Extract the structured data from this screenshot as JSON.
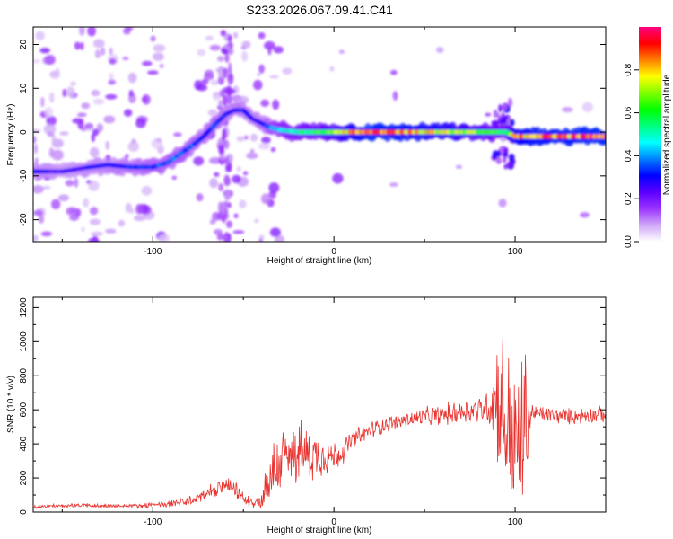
{
  "title": "S233.2026.067.09.41.C41",
  "chart_data": [
    {
      "type": "heatmap",
      "xlabel": "Height of straight line (km)",
      "ylabel": "Frequency (Hz)",
      "xlim": [
        -166,
        150
      ],
      "ylim": [
        -25,
        24
      ],
      "xticks": [
        -100,
        0,
        100
      ],
      "xtick_labels": [
        "-100",
        "0",
        "100"
      ],
      "yticks": [
        -20,
        -10,
        0,
        10,
        20
      ],
      "ytick_labels": [
        "-20",
        "-10",
        "0",
        "10",
        "20"
      ],
      "colorbar": {
        "label": "Normalized spectral amplitude",
        "range": [
          0,
          1
        ],
        "ticks": [
          0.0,
          0.2,
          0.4,
          0.6,
          0.8
        ],
        "tick_labels": [
          "0.0",
          "0.2",
          "0.4",
          "0.6",
          "0.8"
        ],
        "colors": [
          "#ffffff",
          "#cfa8f7",
          "#9b33ff",
          "#5b00ff",
          "#0000ff",
          "#0080ff",
          "#00ffff",
          "#00ff80",
          "#00ff00",
          "#80ff00",
          "#ffff00",
          "#ff8000",
          "#ff0000",
          "#ff0080"
        ]
      },
      "ridge": {
        "x": [
          -166,
          -150,
          -135,
          -125,
          -112,
          -100,
          -92,
          -85,
          -78,
          -72,
          -65,
          -60,
          -55,
          -50,
          -45,
          -40,
          -35,
          -30,
          -20,
          -10,
          0,
          10,
          20,
          40,
          60,
          80,
          90,
          95,
          100,
          110,
          130,
          150
        ],
        "frequency": [
          -9,
          -9,
          -8,
          -7.5,
          -8,
          -8,
          -7,
          -5,
          -3,
          -1,
          2,
          4,
          5,
          5,
          3,
          2,
          1,
          0.5,
          0,
          0,
          0,
          0,
          0,
          0,
          0,
          0,
          0,
          0,
          -1,
          -1,
          -1,
          -1
        ],
        "amplitude": [
          0.3,
          0.25,
          0.28,
          0.3,
          0.32,
          0.35,
          0.36,
          0.38,
          0.36,
          0.32,
          0.35,
          0.3,
          0.3,
          0.32,
          0.28,
          0.3,
          0.4,
          0.48,
          0.55,
          0.6,
          0.7,
          0.82,
          0.95,
          0.9,
          0.8,
          0.7,
          0.6,
          0.55,
          0.85,
          0.9,
          0.92,
          0.95
        ]
      }
    },
    {
      "type": "line",
      "xlabel": "Height of straight line (km)",
      "ylabel": "SNR (10 * v/v)",
      "xlim": [
        -166,
        150
      ],
      "ylim": [
        0,
        1260
      ],
      "xticks": [
        -100,
        0,
        100
      ],
      "xtick_labels": [
        "-100",
        "0",
        "100"
      ],
      "yticks": [
        0,
        200,
        400,
        600,
        800,
        1000,
        1200
      ],
      "ytick_labels": [
        "0",
        "200",
        "400",
        "600",
        "800",
        "1000",
        "1200"
      ],
      "series": [
        {
          "name": "SNR",
          "color": "#e8322e",
          "x": [
            -166,
            -140,
            -120,
            -100,
            -80,
            -70,
            -65,
            -60,
            -55,
            -50,
            -45,
            -40,
            -37,
            -35,
            -30,
            -25,
            -20,
            -15,
            -10,
            -5,
            0,
            5,
            10,
            20,
            30,
            40,
            50,
            60,
            70,
            80,
            85,
            88,
            90,
            92,
            95,
            98,
            100,
            103,
            105,
            108,
            110,
            120,
            130,
            140,
            150
          ],
          "y": [
            30,
            40,
            35,
            40,
            60,
            110,
            120,
            160,
            130,
            80,
            60,
            60,
            170,
            200,
            300,
            310,
            360,
            340,
            330,
            340,
            320,
            360,
            420,
            480,
            520,
            540,
            560,
            570,
            590,
            600,
            620,
            650,
            700,
            620,
            520,
            430,
            380,
            400,
            500,
            560,
            580,
            570,
            560,
            570,
            575
          ],
          "noise": [
            10,
            10,
            10,
            12,
            25,
            35,
            40,
            40,
            40,
            30,
            30,
            35,
            140,
            160,
            170,
            170,
            150,
            140,
            120,
            100,
            80,
            60,
            50,
            45,
            40,
            40,
            45,
            50,
            60,
            70,
            80,
            220,
            300,
            400,
            430,
            400,
            350,
            430,
            450,
            120,
            40,
            40,
            40,
            40,
            40
          ]
        }
      ]
    }
  ]
}
